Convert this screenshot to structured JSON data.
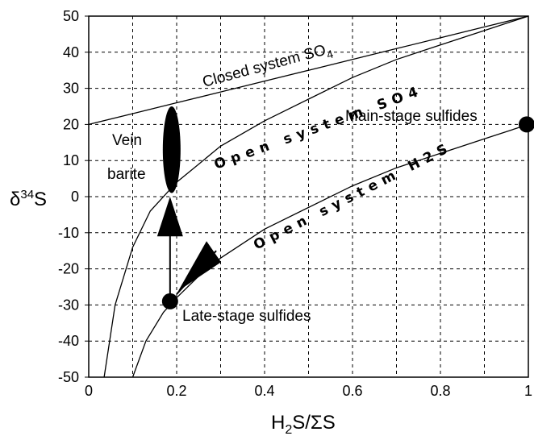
{
  "chart_data": {
    "type": "line",
    "title": "",
    "xlabel_parts": [
      "H",
      "2",
      "S/ΣS"
    ],
    "ylabel_parts": [
      "δ",
      "34",
      "S"
    ],
    "xlim": [
      0,
      1
    ],
    "ylim": [
      -50,
      50
    ],
    "x_ticks": [
      0,
      0.2,
      0.4,
      0.6,
      0.8,
      1
    ],
    "x_tick_labels": [
      "0",
      "0.2",
      "0.4",
      "0.6",
      "0.8",
      "1"
    ],
    "y_ticks": [
      50,
      40,
      30,
      20,
      10,
      0,
      -10,
      -20,
      -30,
      -40,
      -50
    ],
    "y_tick_labels": [
      "50",
      "40",
      "30",
      "20",
      "10",
      "0",
      "-10",
      "-20",
      "-30",
      "-40",
      "-50"
    ],
    "grid": true,
    "series": [
      {
        "name": "Closed system SO4",
        "points": [
          [
            0,
            20
          ],
          [
            0.1,
            23
          ],
          [
            0.2,
            26
          ],
          [
            0.3,
            29
          ],
          [
            0.4,
            32
          ],
          [
            0.5,
            35
          ],
          [
            0.6,
            38
          ],
          [
            0.7,
            41
          ],
          [
            0.8,
            44
          ],
          [
            0.9,
            47
          ],
          [
            1,
            50
          ]
        ]
      },
      {
        "name": "Open system SO4",
        "points": [
          [
            0.035,
            -50
          ],
          [
            0.06,
            -30
          ],
          [
            0.1,
            -14
          ],
          [
            0.14,
            -4
          ],
          [
            0.2,
            4
          ],
          [
            0.25,
            9
          ],
          [
            0.3,
            14
          ],
          [
            0.4,
            21
          ],
          [
            0.5,
            27
          ],
          [
            0.6,
            33
          ],
          [
            0.7,
            38
          ],
          [
            0.8,
            42
          ],
          [
            0.9,
            46
          ],
          [
            1,
            50
          ]
        ]
      },
      {
        "name": "Open system H2S",
        "points": [
          [
            0.1,
            -50
          ],
          [
            0.13,
            -40
          ],
          [
            0.17,
            -32
          ],
          [
            0.2,
            -28
          ],
          [
            0.25,
            -22
          ],
          [
            0.3,
            -17
          ],
          [
            0.4,
            -9
          ],
          [
            0.5,
            -3
          ],
          [
            0.6,
            3
          ],
          [
            0.7,
            8
          ],
          [
            0.8,
            12
          ],
          [
            0.9,
            16
          ],
          [
            1,
            20
          ]
        ]
      }
    ],
    "annotations": {
      "closed_so4": "Closed system SO",
      "closed_so4_sub": "4",
      "open_so4": "Open system SO4",
      "open_h2s": "Open system H2S",
      "vein_barite_line1": "Vein",
      "vein_barite_line2": "barite",
      "main_stage": "Main-stage sulfides",
      "late_stage": "Late-stage sulfides"
    },
    "markers": {
      "main_stage_point": [
        1,
        20
      ],
      "late_stage_point": [
        0.185,
        -29
      ],
      "vein_barite_range": [
        0.185,
        1,
        25
      ],
      "arrow_up": [
        [
          0.185,
          -28
        ],
        [
          0.185,
          0
        ]
      ],
      "arrow_diag": [
        [
          0.2,
          -27
        ],
        [
          0.29,
          -15
        ]
      ]
    }
  }
}
